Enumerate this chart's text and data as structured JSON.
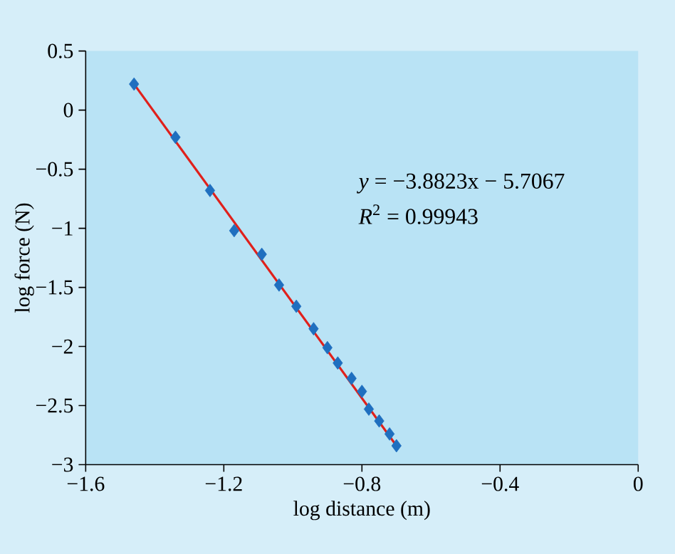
{
  "chart_data": {
    "type": "scatter",
    "xlabel": "log distance (m)",
    "ylabel": "log force (N)",
    "xlim": [
      -1.6,
      0
    ],
    "ylim": [
      -3,
      0.5
    ],
    "xticks": [
      {
        "value": -1.6,
        "label": "−1.6"
      },
      {
        "value": -1.2,
        "label": "−1.2"
      },
      {
        "value": -0.8,
        "label": "−0.8"
      },
      {
        "value": -0.4,
        "label": "−0.4"
      },
      0
    ],
    "yticks": [
      {
        "value": -3,
        "label": "−3"
      },
      {
        "value": -2.5,
        "label": "−2.5"
      },
      {
        "value": -2,
        "label": "−2"
      },
      {
        "value": -1.5,
        "label": "−1.5"
      },
      {
        "value": -1,
        "label": "−1"
      },
      {
        "value": -0.5,
        "label": "−0.5"
      },
      0,
      0.5
    ],
    "annotations": [
      "*y* = −3.8823x − 5.7067",
      "*R*$^{2}$ = 0.99943"
    ],
    "series": [
      {
        "type": "line",
        "color": "#e0201b",
        "marker": "none",
        "x": [
          -1.46,
          -0.7
        ],
        "values": [
          0.22,
          -2.84
        ]
      },
      {
        "type": "scatter",
        "color": "#1f6fbf",
        "marker": "diamond",
        "x": [
          -1.46,
          -1.34,
          -1.24,
          -1.17,
          -1.09,
          -1.04,
          -0.99,
          -0.94,
          -0.9,
          -0.87,
          -0.83,
          -0.8,
          -0.78,
          -0.75,
          -0.72,
          -0.7
        ],
        "values": [
          0.22,
          -0.23,
          -0.68,
          -1.02,
          -1.22,
          -1.48,
          -1.66,
          -1.85,
          -2.01,
          -2.14,
          -2.27,
          -2.38,
          -2.53,
          -2.63,
          -2.74,
          -2.84
        ]
      }
    ]
  }
}
